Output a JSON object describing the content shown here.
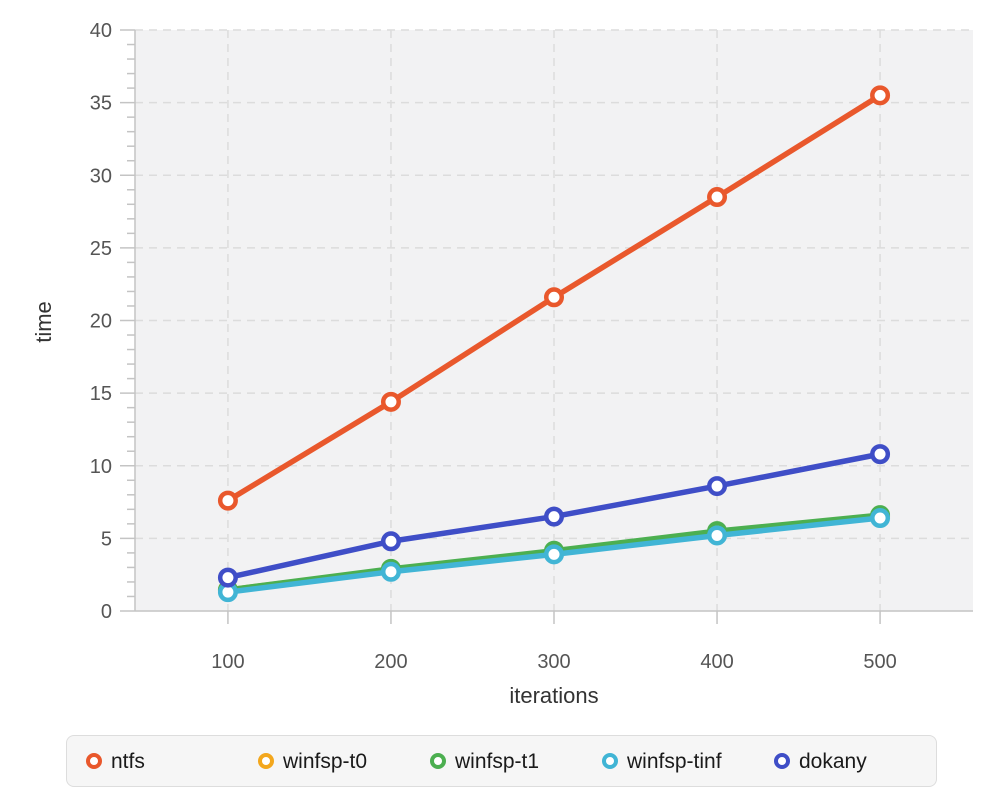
{
  "chart_data": {
    "type": "line",
    "title": "",
    "xlabel": "iterations",
    "ylabel": "time",
    "x": [
      100,
      200,
      300,
      400,
      500
    ],
    "xticks": [
      "100",
      "200",
      "300",
      "400",
      "500"
    ],
    "yticks": [
      0,
      5,
      10,
      15,
      20,
      25,
      30,
      35,
      40
    ],
    "xlim": [
      43,
      557
    ],
    "ylim": [
      0,
      40
    ],
    "grid": true,
    "grid_style": "dashed",
    "marker": "open-circle",
    "legend_position": "bottom",
    "series": [
      {
        "name": "ntfs",
        "color": "#E9582C",
        "values": [
          7.6,
          14.4,
          21.6,
          28.5,
          35.5
        ]
      },
      {
        "name": "winfsp-t0",
        "color": "#F3A71D",
        "values": [
          1.45,
          2.85,
          4.1,
          5.4,
          6.5
        ]
      },
      {
        "name": "winfsp-t1",
        "color": "#4CAF50",
        "values": [
          1.45,
          2.9,
          4.15,
          5.5,
          6.6
        ]
      },
      {
        "name": "winfsp-tinf",
        "color": "#41B5D5",
        "values": [
          1.3,
          2.7,
          3.9,
          5.2,
          6.4
        ]
      },
      {
        "name": "dokany",
        "color": "#3F4EC7",
        "values": [
          2.3,
          4.8,
          6.5,
          8.6,
          10.8
        ]
      }
    ]
  },
  "style_colors": {
    "plot_background": "#f2f2f3",
    "gridline": "#dcdcdc",
    "axis": "#c4c4c4",
    "tick_text": "#555555",
    "title_text": "#333333",
    "legend_background": "#f6f6f6",
    "legend_border": "#dddddd",
    "legend_text": "#1a1a1a"
  }
}
